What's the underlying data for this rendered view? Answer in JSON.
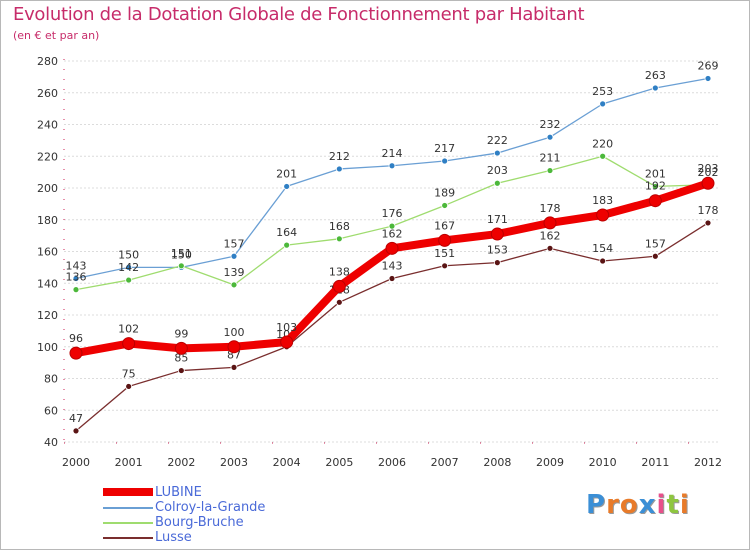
{
  "header": {
    "title": "Evolution de la Dotation Globale de Fonctionnement par Habitant",
    "subtitle": "(en € et par an)"
  },
  "chart_data": {
    "type": "line",
    "title": "Evolution de la Dotation Globale de Fonctionnement par Habitant",
    "subtitle": "(en € et par an)",
    "xlabel": "",
    "ylabel": "",
    "x": [
      "2000",
      "2001",
      "2002",
      "2003",
      "2004",
      "2005",
      "2006",
      "2007",
      "2008",
      "2009",
      "2010",
      "2011",
      "2012"
    ],
    "ylim": [
      40,
      280
    ],
    "yticks": [
      "40",
      "60",
      "80",
      "100",
      "120",
      "140",
      "160",
      "180",
      "200",
      "220",
      "240",
      "260",
      "280"
    ],
    "grid": "horizontal",
    "legend_position": "bottom-left",
    "series": [
      {
        "name": "LUBINE",
        "color": "#ee0000",
        "marker_color": "#ee0000",
        "emphasis": true,
        "values": [
          96,
          102,
          99,
          100,
          103,
          138,
          162,
          167,
          171,
          178,
          183,
          192,
          203
        ],
        "labels": [
          "96",
          "102",
          "99",
          "100",
          "103",
          "138",
          "162",
          "167",
          "171",
          "178",
          "183",
          "192",
          "203"
        ]
      },
      {
        "name": "Colroy-la-Grande",
        "color": "#6a9fd4",
        "marker_color": "#2f7fc4",
        "emphasis": false,
        "values": [
          143,
          150,
          150,
          157,
          201,
          212,
          214,
          217,
          222,
          232,
          253,
          263,
          269
        ],
        "labels": [
          "143",
          "150",
          "150",
          "157",
          "201",
          "212",
          "214",
          "217",
          "222",
          "232",
          "253",
          "263",
          "269"
        ]
      },
      {
        "name": "Bourg-Bruche",
        "color": "#9fdc6f",
        "marker_color": "#4cb83a",
        "emphasis": false,
        "values": [
          136,
          142,
          151,
          139,
          164,
          168,
          176,
          189,
          203,
          211,
          220,
          201,
          202
        ],
        "labels": [
          "136",
          "142",
          "151",
          "139",
          "164",
          "168",
          "176",
          "189",
          "203",
          "211",
          "220",
          "201",
          "202"
        ]
      },
      {
        "name": "Lusse",
        "color": "#7a2e2e",
        "marker_color": "#5a1414",
        "emphasis": false,
        "values": [
          47,
          75,
          85,
          87,
          100,
          128,
          143,
          151,
          153,
          162,
          154,
          157,
          178
        ],
        "labels": [
          "47",
          "75",
          "85",
          "87",
          "100",
          "128",
          "143",
          "151",
          "153",
          "162",
          "154",
          "157",
          "178"
        ]
      }
    ]
  },
  "logo": {
    "letters": [
      {
        "ch": "P",
        "color": "#3b8fd6"
      },
      {
        "ch": "r",
        "color": "#e87b2a"
      },
      {
        "ch": "o",
        "color": "#e87b2a"
      },
      {
        "ch": "x",
        "color": "#3b8fd6"
      },
      {
        "ch": "i",
        "color": "#e84f8a"
      },
      {
        "ch": "t",
        "color": "#8ec63f"
      },
      {
        "ch": "i",
        "color": "#e87b2a"
      }
    ]
  }
}
